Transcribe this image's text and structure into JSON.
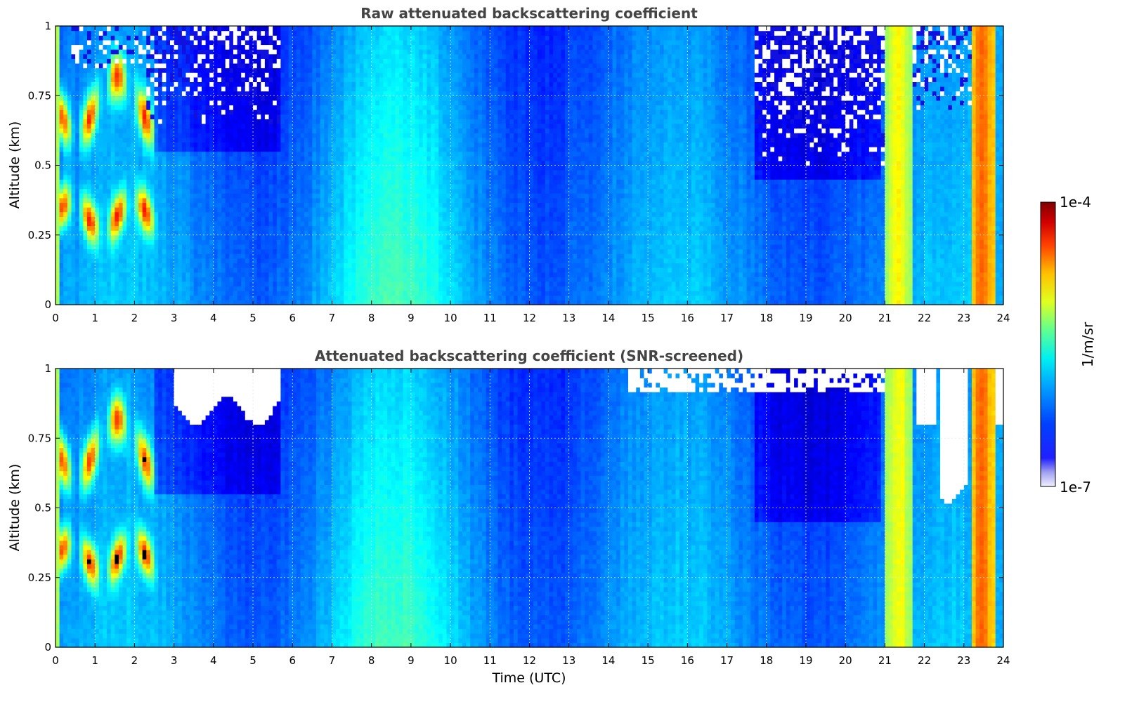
{
  "chart_data": [
    {
      "type": "heatmap",
      "title": "Raw attenuated backscattering coefficient",
      "xlabel": "",
      "ylabel": "Altitude (km)",
      "xlim": [
        0,
        24
      ],
      "ylim": [
        0,
        1
      ],
      "x_ticks": [
        "0",
        "1",
        "2",
        "3",
        "4",
        "5",
        "6",
        "7",
        "8",
        "9",
        "10",
        "11",
        "12",
        "13",
        "14",
        "15",
        "16",
        "17",
        "18",
        "19",
        "20",
        "21",
        "22",
        "23",
        "24"
      ],
      "y_ticks": [
        "0",
        "0.25",
        "0.5",
        "0.75",
        "1"
      ],
      "grid": true,
      "screened": false,
      "features": [
        {
          "desc": "strong multi-layer aerosol/cloud",
          "x_range": [
            0,
            2.6
          ],
          "alt_range": [
            0.15,
            1.0
          ],
          "level": "high"
        },
        {
          "desc": "noise above signal",
          "x_range": [
            2.3,
            5.7
          ],
          "alt_range": [
            0.65,
            1.0
          ],
          "level": "noise"
        },
        {
          "desc": "noise above signal",
          "x_range": [
            17.7,
            23.8
          ],
          "alt_range": [
            0.5,
            1.0
          ],
          "level": "noise"
        },
        {
          "desc": "full-column enhancement",
          "x_range": [
            21.0,
            21.7
          ],
          "alt_range": [
            0,
            1.0
          ],
          "level": "medium-high"
        },
        {
          "desc": "full-column enhancement",
          "x_range": [
            23.2,
            23.75
          ],
          "alt_range": [
            0,
            1.0
          ],
          "level": "high"
        }
      ]
    },
    {
      "type": "heatmap",
      "title": "Attenuated backscattering coefficient (SNR-screened)",
      "xlabel": "Time (UTC)",
      "ylabel": "Altitude (km)",
      "xlim": [
        0,
        24
      ],
      "ylim": [
        0,
        1
      ],
      "x_ticks": [
        "0",
        "1",
        "2",
        "3",
        "4",
        "5",
        "6",
        "7",
        "8",
        "9",
        "10",
        "11",
        "12",
        "13",
        "14",
        "15",
        "16",
        "17",
        "18",
        "19",
        "20",
        "21",
        "22",
        "23",
        "24"
      ],
      "y_ticks": [
        "0",
        "0.25",
        "0.5",
        "0.75",
        "1"
      ],
      "grid": true,
      "screened": true
    }
  ],
  "colorbar": {
    "label": "1/m/sr",
    "max_label": "1e-4",
    "min_label": "1e-7",
    "colormap": "jet"
  }
}
